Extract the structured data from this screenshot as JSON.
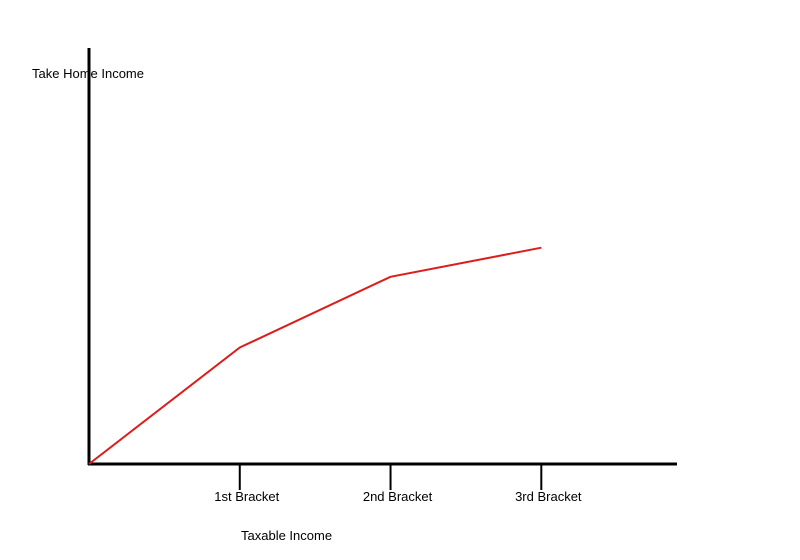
{
  "chart_data": {
    "type": "line",
    "title": "",
    "xlabel": "Taxable Income",
    "ylabel": "Take Home Income",
    "x_ticks": [
      "1st Bracket",
      "2nd Bracket",
      "3rd Bracket"
    ],
    "x": [
      0,
      1,
      2,
      3
    ],
    "series": [
      {
        "values": [
          0,
          0.28,
          0.45,
          0.52
        ]
      }
    ],
    "xlim": [
      0,
      3.9
    ],
    "ylim": [
      0,
      1
    ],
    "grid": false,
    "legend": "none",
    "colors": {
      "line": "#dd1c1c",
      "axes": "#000000"
    }
  }
}
